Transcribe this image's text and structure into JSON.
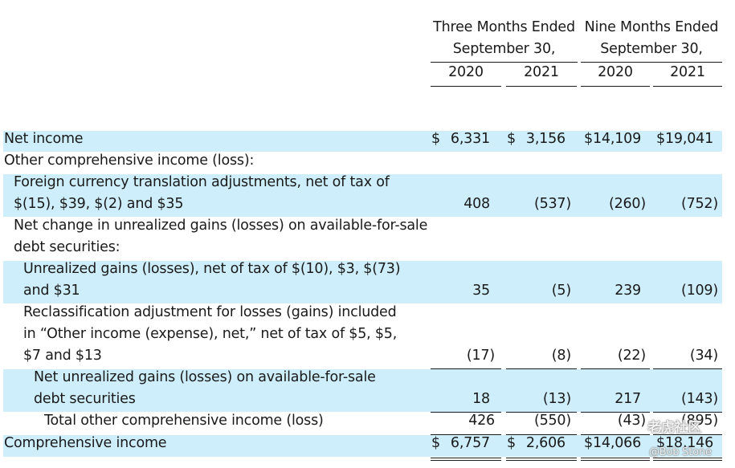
{
  "header": {
    "group1": {
      "line1": "Three Months Ended",
      "line2": "September 30,",
      "years": [
        "2020",
        "2021"
      ]
    },
    "group2": {
      "line1": "Nine Months Ended",
      "line2": "September 30,",
      "years": [
        "2020",
        "2021"
      ]
    }
  },
  "rows": {
    "net_income": {
      "label": "Net income",
      "values": [
        "6,331",
        "3,156",
        "$14,109",
        "$19,041"
      ]
    },
    "oci_heading": {
      "label": "Other comprehensive income (loss):"
    },
    "fx": {
      "line1": "Foreign currency translation adjustments, net of tax of",
      "line2": "$(15), $39, $(2) and $35",
      "values": [
        "408",
        "(537)",
        "(260)",
        "(752)"
      ]
    },
    "net_change": {
      "line1": "Net change in unrealized gains (losses) on available-for-sale",
      "line2": "debt securities:"
    },
    "unrealized": {
      "line1": "Unrealized gains (losses), net of tax of $(10), $3, $(73)",
      "line2": "and $31",
      "values": [
        "35",
        "(5)",
        "239",
        "(109)"
      ]
    },
    "reclass": {
      "line1": "Reclassification adjustment for losses (gains) included",
      "line2": "in “Other income (expense), net,” net of tax of $5, $5,",
      "line3": "$7 and $13",
      "values": [
        "(17)",
        "(8)",
        "(22)",
        "(34)"
      ]
    },
    "net_unrealized": {
      "line1": "Net unrealized gains (losses) on available-for-sale",
      "line2": "debt securities",
      "values": [
        "18",
        "(13)",
        "217",
        "(143)"
      ]
    },
    "total_oci": {
      "label": "Total other comprehensive income (loss)",
      "values": [
        "426",
        "(550)",
        "(43)",
        "(895)"
      ]
    },
    "comprehensive": {
      "label": "Comprehensive income",
      "values": [
        "6,757",
        "2,606",
        "$14,066",
        "$18,146"
      ]
    }
  },
  "currency_symbol": "$",
  "watermark": {
    "line1": "老虎社区",
    "line2": "@Bob Stone"
  },
  "colors": {
    "row_highlight": "#cdeefa",
    "text": "#1a1a1a"
  }
}
